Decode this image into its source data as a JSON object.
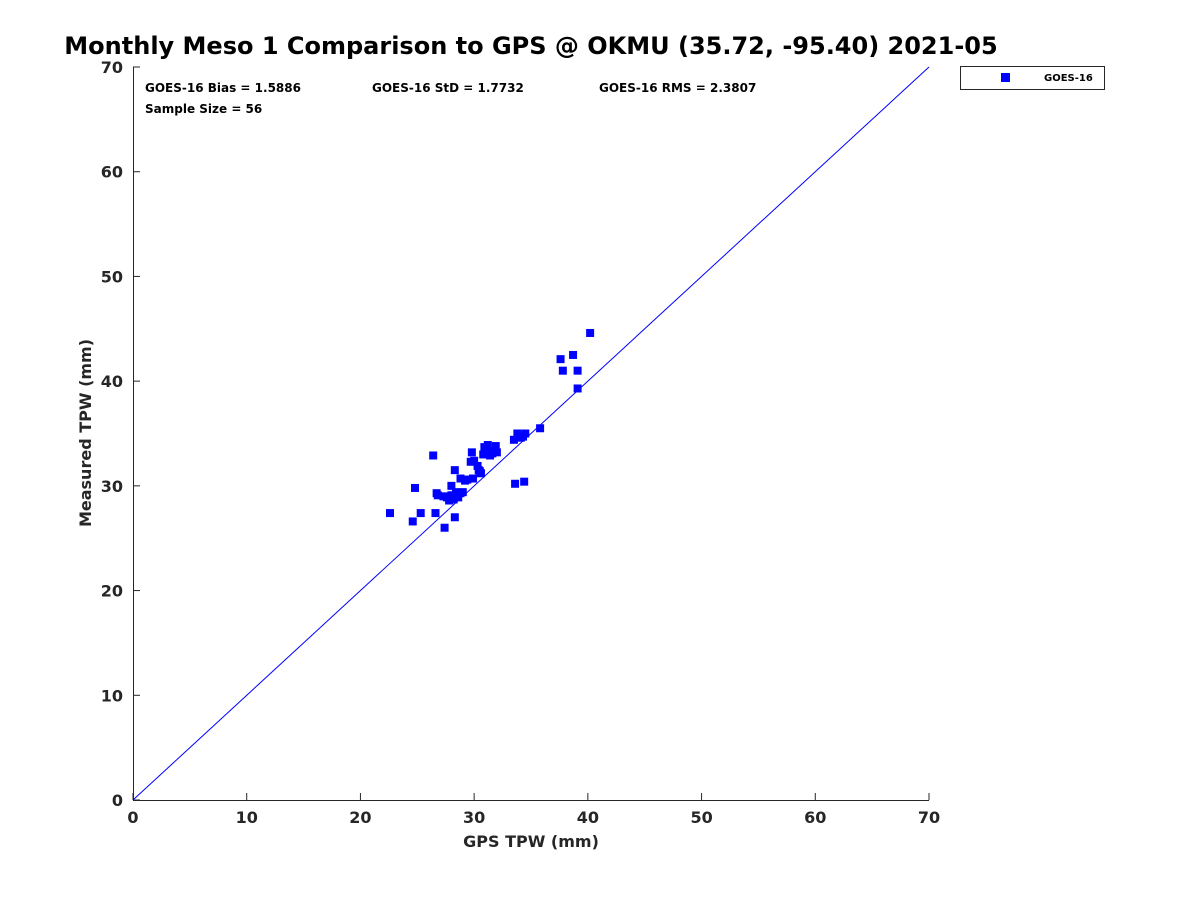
{
  "chart_data": {
    "type": "scatter",
    "title": "Monthly Meso 1 Comparison to GPS @ OKMU (35.72, -95.40) 2021-05",
    "xlabel": "GPS TPW (mm)",
    "ylabel": "Measured TPW (mm)",
    "xlim": [
      0,
      70
    ],
    "ylim": [
      0,
      70
    ],
    "x_ticks": [
      "0",
      "10",
      "20",
      "30",
      "40",
      "50",
      "60",
      "70"
    ],
    "y_ticks": [
      "0",
      "10",
      "20",
      "30",
      "40",
      "50",
      "60",
      "70"
    ],
    "grid": false,
    "legend_position": "outside-top-right",
    "stats": {
      "bias": "GOES-16 Bias = 1.5886",
      "std": "GOES-16 StD = 1.7732",
      "rms": "GOES-16 RMS = 2.3807",
      "sample": "Sample Size = 56"
    },
    "reference_line": {
      "label": "1:1",
      "color": "#0000ff"
    },
    "series": [
      {
        "name": "GOES-16",
        "color": "#0000ff",
        "marker": "square",
        "points": [
          [
            22.6,
            27.4
          ],
          [
            24.6,
            26.6
          ],
          [
            24.8,
            29.8
          ],
          [
            25.3,
            27.4
          ],
          [
            26.4,
            32.9
          ],
          [
            26.6,
            27.4
          ],
          [
            26.7,
            29.3
          ],
          [
            26.8,
            29.1
          ],
          [
            27.3,
            29.0
          ],
          [
            27.4,
            26.0
          ],
          [
            27.6,
            28.9
          ],
          [
            27.8,
            28.6
          ],
          [
            28.0,
            29.1
          ],
          [
            28.0,
            30.0
          ],
          [
            28.1,
            29.0
          ],
          [
            28.2,
            28.7
          ],
          [
            28.3,
            27.0
          ],
          [
            28.3,
            31.5
          ],
          [
            28.4,
            29.4
          ],
          [
            28.6,
            28.9
          ],
          [
            28.8,
            29.3
          ],
          [
            28.8,
            30.7
          ],
          [
            29.0,
            29.4
          ],
          [
            29.2,
            30.5
          ],
          [
            29.4,
            30.6
          ],
          [
            29.7,
            32.3
          ],
          [
            29.8,
            33.2
          ],
          [
            29.9,
            30.7
          ],
          [
            30.0,
            32.4
          ],
          [
            30.3,
            31.9
          ],
          [
            30.5,
            31.4
          ],
          [
            30.6,
            31.2
          ],
          [
            30.8,
            33.0
          ],
          [
            30.9,
            33.7
          ],
          [
            31.1,
            33.3
          ],
          [
            31.2,
            33.9
          ],
          [
            31.4,
            32.9
          ],
          [
            31.6,
            33.1
          ],
          [
            31.7,
            33.4
          ],
          [
            31.9,
            33.8
          ],
          [
            32.0,
            33.2
          ],
          [
            33.5,
            34.4
          ],
          [
            33.6,
            30.2
          ],
          [
            33.8,
            35.0
          ],
          [
            34.1,
            34.6
          ],
          [
            34.3,
            34.7
          ],
          [
            34.4,
            30.4
          ],
          [
            34.5,
            35.0
          ],
          [
            35.8,
            35.5
          ],
          [
            37.6,
            42.1
          ],
          [
            37.8,
            41.0
          ],
          [
            38.7,
            42.5
          ],
          [
            39.1,
            41.0
          ],
          [
            39.1,
            39.3
          ],
          [
            40.2,
            44.6
          ],
          [
            30.4,
            31.5
          ]
        ]
      }
    ]
  }
}
